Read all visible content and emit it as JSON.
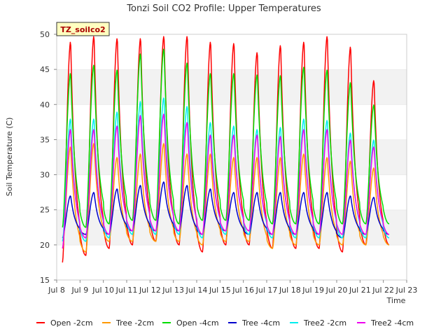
{
  "chart_data": {
    "type": "line",
    "title": "Tonzi Soil CO2 Profile: Upper Temperatures",
    "xlabel": "Time",
    "ylabel": "Soil Temperature (C)",
    "badge": "TZ_soilco2",
    "ylim": [
      15,
      50
    ],
    "xlim": [
      "Jul 8",
      "Jul 23"
    ],
    "x_ticks": [
      "Jul 8",
      "Jul 9",
      "Jul 10",
      "Jul 11",
      "Jul 12",
      "Jul 13",
      "Jul 14",
      "Jul 15",
      "Jul 16",
      "Jul 17",
      "Jul 18",
      "Jul 19",
      "Jul 20",
      "Jul 21",
      "Jul 22",
      "Jul 23"
    ],
    "y_ticks": [
      15,
      20,
      25,
      30,
      35,
      40,
      45,
      50
    ],
    "grid": "horizontal bands",
    "legend_position": "bottom",
    "x_start": "Jul 8 06:00",
    "x_end": "Jul 22 06:00",
    "series": [
      {
        "name": "Open -2cm",
        "color": "#ff0000",
        "mins": [
          17.5,
          18.5,
          19.5,
          20.0,
          20.5,
          20.0,
          19.0,
          20.0,
          20.0,
          19.5,
          19.5,
          19.5,
          19.0,
          20.0
        ],
        "maxs": [
          49.0,
          49.8,
          49.5,
          49.5,
          49.8,
          49.8,
          49.0,
          48.8,
          47.5,
          48.5,
          49.0,
          49.8,
          48.3,
          43.5
        ]
      },
      {
        "name": "Tree -2cm",
        "color": "#ff9900",
        "mins": [
          19.5,
          19.0,
          20.5,
          20.5,
          20.5,
          20.5,
          20.0,
          20.5,
          20.5,
          19.5,
          20.0,
          20.0,
          20.0,
          20.0
        ],
        "maxs": [
          34.0,
          34.5,
          32.5,
          33.0,
          34.5,
          33.0,
          33.0,
          32.5,
          32.5,
          32.5,
          33.0,
          32.5,
          32.0,
          31.0
        ]
      },
      {
        "name": "Open -4cm",
        "color": "#00dd00",
        "mins": [
          22.5,
          22.5,
          23.0,
          23.5,
          23.5,
          23.0,
          23.5,
          23.5,
          23.5,
          23.0,
          23.0,
          23.0,
          23.0,
          23.0
        ],
        "maxs": [
          44.5,
          45.7,
          45.0,
          47.3,
          48.0,
          46.0,
          44.5,
          44.5,
          44.3,
          44.2,
          45.4,
          45.0,
          43.2,
          40.0
        ]
      },
      {
        "name": "Tree -4cm",
        "color": "#0000cc",
        "mins": [
          21.0,
          21.5,
          21.5,
          22.0,
          22.0,
          22.0,
          21.5,
          22.0,
          21.5,
          21.5,
          21.5,
          21.5,
          21.0,
          21.5
        ],
        "maxs": [
          27.0,
          27.5,
          28.0,
          28.5,
          29.0,
          28.5,
          28.0,
          27.5,
          27.5,
          27.5,
          27.5,
          27.5,
          27.0,
          26.8
        ]
      },
      {
        "name": "Tree2 -2cm",
        "color": "#00eeee",
        "mins": [
          20.5,
          20.5,
          21.0,
          21.5,
          21.5,
          21.5,
          21.0,
          21.5,
          21.5,
          21.0,
          21.0,
          21.0,
          21.0,
          21.0
        ],
        "maxs": [
          38.0,
          38.0,
          39.0,
          40.5,
          41.0,
          39.8,
          37.5,
          37.0,
          36.5,
          36.8,
          38.0,
          37.8,
          36.0,
          35.0
        ]
      },
      {
        "name": "Tree2 -4cm",
        "color": "#ee00ee",
        "mins": [
          19.5,
          21.0,
          21.5,
          22.0,
          22.0,
          22.0,
          21.5,
          22.0,
          22.0,
          21.5,
          21.5,
          21.5,
          21.5,
          21.5
        ],
        "maxs": [
          36.5,
          36.5,
          37.0,
          38.5,
          38.7,
          37.5,
          35.7,
          35.7,
          35.7,
          35.5,
          36.5,
          36.5,
          35.0,
          34.0
        ]
      }
    ]
  }
}
